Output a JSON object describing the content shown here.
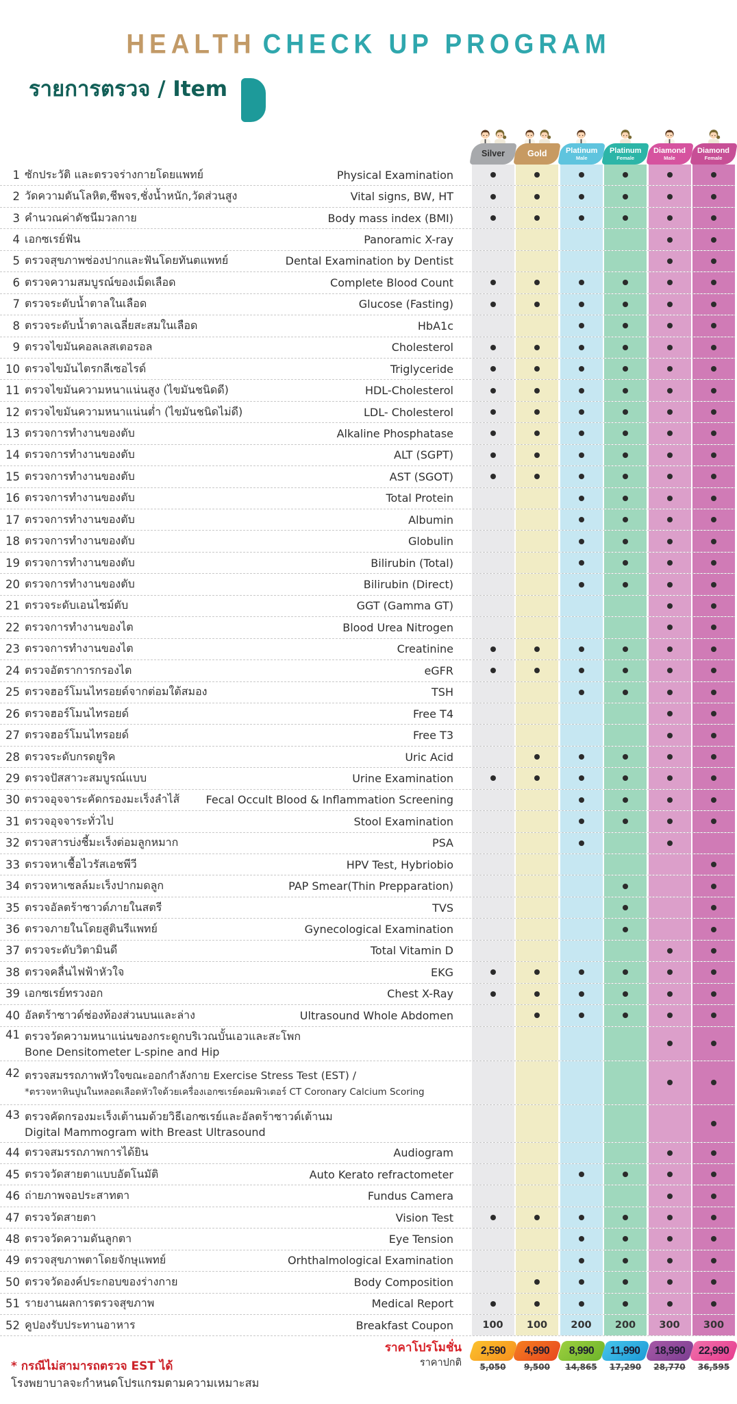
{
  "title": {
    "part1": "HEALTH",
    "part2": "CHECK UP PROGRAM"
  },
  "subtitle": "รายการตรวจ / Item",
  "columns": [
    {
      "id": "silver",
      "label": "Silver",
      "sub": "",
      "badge_color": "#a7a9ac",
      "band_color": "#e9e9eb",
      "text_color": "#2f2f2f",
      "people": "male-female"
    },
    {
      "id": "gold",
      "label": "Gold",
      "sub": "",
      "badge_color": "#c79a62",
      "band_color": "#f1ecc5",
      "text_color": "#ffffff",
      "people": "male-female"
    },
    {
      "id": "platinum-male",
      "label": "Platinum",
      "sub": "Male",
      "badge_color": "#5fc4de",
      "band_color": "#c6e7f2",
      "text_color": "#ffffff",
      "people": "male"
    },
    {
      "id": "platinum-female",
      "label": "Platinum",
      "sub": "Female",
      "badge_color": "#2cb5a7",
      "band_color": "#9fd8bd",
      "text_color": "#ffffff",
      "people": "female"
    },
    {
      "id": "diamond-male",
      "label": "Diamond",
      "sub": "Male",
      "badge_color": "#d6539f",
      "band_color": "#dc9fca",
      "text_color": "#ffffff",
      "people": "male"
    },
    {
      "id": "diamond-female",
      "label": "Diamond",
      "sub": "Female",
      "badge_color": "#c74f96",
      "band_color": "#d07bb6",
      "text_color": "#ffffff",
      "people": "female"
    }
  ],
  "rows": [
    {
      "no": "1",
      "thai": "ซักประวัติ และตรวจร่างกายโดยแพทย์",
      "english": "Physical Examination",
      "marks": [
        1,
        1,
        1,
        1,
        1,
        1
      ]
    },
    {
      "no": "2",
      "thai": "วัดความดันโลหิต,ชีพจร,ชั่งน้ำหนัก,วัดส่วนสูง",
      "english": "Vital signs, BW, HT",
      "marks": [
        1,
        1,
        1,
        1,
        1,
        1
      ]
    },
    {
      "no": "3",
      "thai": "คำนวณค่าดัชนีมวลกาย",
      "english": "Body mass index (BMI)",
      "marks": [
        1,
        1,
        1,
        1,
        1,
        1
      ]
    },
    {
      "no": "4",
      "thai": "เอกซเรย์ฟัน",
      "english": "Panoramic X-ray",
      "marks": [
        0,
        0,
        0,
        0,
        1,
        1
      ]
    },
    {
      "no": "5",
      "thai": "ตรวจสุขภาพช่องปากและฟันโดยทันตแพทย์",
      "english": "Dental Examination by Dentist",
      "marks": [
        0,
        0,
        0,
        0,
        1,
        1
      ]
    },
    {
      "no": "6",
      "thai": "ตรวจความสมบูรณ์ของเม็ดเลือด",
      "english": "Complete Blood Count",
      "marks": [
        1,
        1,
        1,
        1,
        1,
        1
      ]
    },
    {
      "no": "7",
      "thai": "ตรวจระดับน้ำตาลในเลือด",
      "english": "Glucose (Fasting)",
      "marks": [
        1,
        1,
        1,
        1,
        1,
        1
      ]
    },
    {
      "no": "8",
      "thai": "ตรวจระดับน้ำตาลเฉลี่ยสะสมในเลือด",
      "english": "HbA1c",
      "marks": [
        0,
        0,
        1,
        1,
        1,
        1
      ]
    },
    {
      "no": "9",
      "thai": "ตรวจไขมันคอลเลสเตอรอล",
      "english": "Cholesterol",
      "marks": [
        1,
        1,
        1,
        1,
        1,
        1
      ]
    },
    {
      "no": "10",
      "thai": "ตรวจไขมันไตรกลีเซอไรด์",
      "english": "Triglyceride",
      "marks": [
        1,
        1,
        1,
        1,
        1,
        1
      ]
    },
    {
      "no": "11",
      "thai": "ตรวจไขมันความหนาแน่นสูง (ไขมันชนิดดี)",
      "english": "HDL-Cholesterol",
      "marks": [
        1,
        1,
        1,
        1,
        1,
        1
      ]
    },
    {
      "no": "12",
      "thai": "ตรวจไขมันความหนาแน่นต่ำ (ไขมันชนิดไม่ดี)",
      "english": "LDL- Cholesterol",
      "marks": [
        1,
        1,
        1,
        1,
        1,
        1
      ]
    },
    {
      "no": "13",
      "thai": "ตรวจการทำงานของตับ",
      "english": "Alkaline Phosphatase",
      "marks": [
        1,
        1,
        1,
        1,
        1,
        1
      ]
    },
    {
      "no": "14",
      "thai": "ตรวจการทำงานของตับ",
      "english": "ALT (SGPT)",
      "marks": [
        1,
        1,
        1,
        1,
        1,
        1
      ]
    },
    {
      "no": "15",
      "thai": "ตรวจการทำงานของตับ",
      "english": "AST (SGOT)",
      "marks": [
        1,
        1,
        1,
        1,
        1,
        1
      ]
    },
    {
      "no": "16",
      "thai": "ตรวจการทำงานของตับ",
      "english": "Total Protein",
      "marks": [
        0,
        0,
        1,
        1,
        1,
        1
      ]
    },
    {
      "no": "17",
      "thai": "ตรวจการทำงานของตับ",
      "english": "Albumin",
      "marks": [
        0,
        0,
        1,
        1,
        1,
        1
      ]
    },
    {
      "no": "18",
      "thai": "ตรวจการทำงานของตับ",
      "english": "Globulin",
      "marks": [
        0,
        0,
        1,
        1,
        1,
        1
      ]
    },
    {
      "no": "19",
      "thai": "ตรวจการทำงานของตับ",
      "english": "Bilirubin (Total)",
      "marks": [
        0,
        0,
        1,
        1,
        1,
        1
      ]
    },
    {
      "no": "20",
      "thai": "ตรวจการทำงานของตับ",
      "english": "Bilirubin (Direct)",
      "marks": [
        0,
        0,
        1,
        1,
        1,
        1
      ]
    },
    {
      "no": "21",
      "thai": "ตรวจระดับเอนไซม์ตับ",
      "english": "GGT (Gamma GT)",
      "marks": [
        0,
        0,
        0,
        0,
        1,
        1
      ]
    },
    {
      "no": "22",
      "thai": "ตรวจการทำงานของไต",
      "english": "Blood Urea Nitrogen",
      "marks": [
        0,
        0,
        0,
        0,
        1,
        1
      ]
    },
    {
      "no": "23",
      "thai": "ตรวจการทำงานของไต",
      "english": "Creatinine",
      "marks": [
        1,
        1,
        1,
        1,
        1,
        1
      ]
    },
    {
      "no": "24",
      "thai": "ตรวจอัตราการกรองไต",
      "english": "eGFR",
      "marks": [
        1,
        1,
        1,
        1,
        1,
        1
      ]
    },
    {
      "no": "25",
      "thai": "ตรวจฮอร์โมนไทรอยด์จากต่อมใต้สมอง",
      "english": "TSH",
      "marks": [
        0,
        0,
        1,
        1,
        1,
        1
      ]
    },
    {
      "no": "26",
      "thai": "ตรวจฮอร์โมนไทรอยด์",
      "english": "Free T4",
      "marks": [
        0,
        0,
        0,
        0,
        1,
        1
      ]
    },
    {
      "no": "27",
      "thai": "ตรวจฮอร์โมนไทรอยด์",
      "english": "Free T3",
      "marks": [
        0,
        0,
        0,
        0,
        1,
        1
      ]
    },
    {
      "no": "28",
      "thai": "ตรวจระดับกรดยูริค",
      "english": "Uric Acid",
      "marks": [
        0,
        1,
        1,
        1,
        1,
        1
      ]
    },
    {
      "no": "29",
      "thai": "ตรวจปัสสาวะสมบูรณ์แบบ",
      "english": "Urine Examination",
      "marks": [
        1,
        1,
        1,
        1,
        1,
        1
      ]
    },
    {
      "no": "30",
      "thai": "ตรวจอุจจาระคัดกรองมะเร็งลำไส้",
      "english": "Fecal Occult Blood & Inflammation Screening",
      "marks": [
        0,
        0,
        1,
        1,
        1,
        1
      ]
    },
    {
      "no": "31",
      "thai": "ตรวจอุจจาระทั่วไป",
      "english": "Stool Examination",
      "marks": [
        0,
        0,
        1,
        1,
        1,
        1
      ]
    },
    {
      "no": "32",
      "thai": "ตรวจสารบ่งชี้มะเร็งต่อมลูกหมาก",
      "english": "PSA",
      "marks": [
        0,
        0,
        1,
        0,
        1,
        0
      ]
    },
    {
      "no": "33",
      "thai": "ตรวจหาเชื้อไวรัสเอชพีวี",
      "english": "HPV  Test, Hybriobio",
      "marks": [
        0,
        0,
        0,
        0,
        0,
        1
      ]
    },
    {
      "no": "34",
      "thai": "ตรวจหาเซลล์มะเร็งปากมดลูก",
      "english": "PAP Smear(Thin Prepparation)",
      "marks": [
        0,
        0,
        0,
        1,
        0,
        1
      ]
    },
    {
      "no": "35",
      "thai": "ตรวจอัลตร้าซาวด์ภายในสตรี",
      "english": "TVS",
      "marks": [
        0,
        0,
        0,
        1,
        0,
        1
      ]
    },
    {
      "no": "36",
      "thai": "ตรวจภายในโดยสูตินรีแพทย์",
      "english": "Gynecological Examination",
      "marks": [
        0,
        0,
        0,
        1,
        0,
        1
      ]
    },
    {
      "no": "37",
      "thai": "ตรวจระดับวิตามินดี",
      "english": "Total Vitamin D",
      "marks": [
        0,
        0,
        0,
        0,
        1,
        1
      ]
    },
    {
      "no": "38",
      "thai": "ตรวจคลื่นไฟฟ้าหัวใจ",
      "english": "EKG",
      "marks": [
        1,
        1,
        1,
        1,
        1,
        1
      ]
    },
    {
      "no": "39",
      "thai": "เอกซเรย์ทรวงอก",
      "english": "Chest X-Ray",
      "marks": [
        1,
        1,
        1,
        1,
        1,
        1
      ]
    },
    {
      "no": "40",
      "thai": "อัลตร้าซาวด์ช่องท้องส่วนบนและล่าง",
      "english": "Ultrasound Whole Abdomen",
      "marks": [
        0,
        1,
        1,
        1,
        1,
        1
      ]
    },
    {
      "no": "41",
      "thai": "ตรวจวัดความหนาแน่นของกระดูกบริเวณบั้นเอวและสะโพก",
      "thai2": "Bone Densitometer L-spine and Hip",
      "english": "",
      "marks": [
        0,
        0,
        0,
        0,
        1,
        1
      ],
      "tall": 50
    },
    {
      "no": "42",
      "thai": "ตรวจสมรรถภาพหัวใจขณะออกกำลังกาย Exercise Stress Test (EST) /",
      "thai2": "*ตรวจหาหินปูนในหลอดเลือดหัวใจด้วยเครื่องเอกซเรย์คอมพิวเตอร์ CT Coronary Calcium Scoring",
      "english": "",
      "marks": [
        0,
        0,
        0,
        0,
        1,
        1
      ],
      "tall": 64
    },
    {
      "no": "43",
      "thai": "ตรวจคัดกรองมะเร็งเต้านมด้วยวิธีเอกซเรย์และอัลตร้าซาวด์เต้านม",
      "thai2": "Digital Mammogram with Breast Ultrasound",
      "english": "",
      "marks": [
        0,
        0,
        0,
        0,
        0,
        1
      ],
      "tall": 55
    },
    {
      "no": "44",
      "thai": "ตรวจสมรรถภาพการได้ยิน",
      "english": "Audiogram",
      "marks": [
        0,
        0,
        0,
        0,
        1,
        1
      ]
    },
    {
      "no": "45",
      "thai": "ตรวจวัดสายตาแบบอัตโนมัติ",
      "english": "Auto Kerato refractometer",
      "marks": [
        0,
        0,
        1,
        1,
        1,
        1
      ]
    },
    {
      "no": "46",
      "thai": "ถ่ายภาพจอประสาทตา",
      "english": "Fundus Camera",
      "marks": [
        0,
        0,
        0,
        0,
        1,
        1
      ]
    },
    {
      "no": "47",
      "thai": "ตรวจวัดสายตา",
      "english": "Vision Test",
      "marks": [
        1,
        1,
        1,
        1,
        1,
        1
      ]
    },
    {
      "no": "48",
      "thai": "ตรวจวัดความดันลูกตา",
      "english": "Eye Tension",
      "marks": [
        0,
        0,
        1,
        1,
        1,
        1
      ]
    },
    {
      "no": "49",
      "thai": "ตรวจสุขภาพตาโดยจักษุแพทย์",
      "english": "Orhthalmological Examination",
      "marks": [
        0,
        0,
        1,
        1,
        1,
        1
      ]
    },
    {
      "no": "50",
      "thai": "ตรวจวัดองค์ประกอบของร่างกาย",
      "english": "Body Composition",
      "marks": [
        0,
        1,
        1,
        1,
        1,
        1
      ]
    },
    {
      "no": "51",
      "thai": "รายงานผลการตรวจสุขภาพ",
      "english": "Medical Report",
      "marks": [
        1,
        1,
        1,
        1,
        1,
        1
      ]
    },
    {
      "no": "52",
      "thai": "คูปองรับประทานอาหาร",
      "english": "Breakfast Coupon",
      "values": [
        "100",
        "100",
        "200",
        "200",
        "300",
        "300"
      ]
    }
  ],
  "pricing": {
    "promo_label": "ราคาโปรโมชั่น",
    "normal_label": "ราคาปกติ",
    "promo": [
      {
        "value": "2,590",
        "color1": "#fbc02d",
        "color2": "#f6921e"
      },
      {
        "value": "4,990",
        "color1": "#f47b20",
        "color2": "#e8491f"
      },
      {
        "value": "8,990",
        "color1": "#9ace3d",
        "color2": "#6fb52c"
      },
      {
        "value": "11,990",
        "color1": "#45c2ea",
        "color2": "#1e9cd7"
      },
      {
        "value": "18,990",
        "color1": "#a457a5",
        "color2": "#7d3f92"
      },
      {
        "value": "22,990",
        "color1": "#f06eaa",
        "color2": "#e63e8f"
      }
    ],
    "normal": [
      "5,050",
      "9,500",
      "14,865",
      "17,290",
      "28,770",
      "36,595"
    ]
  },
  "footnote": {
    "line1": "* กรณีไม่สามารถตรวจ EST ได้",
    "line2": "โรงพยาบาลจะกำหนดโปรแกรมตามความเหมาะสม"
  }
}
